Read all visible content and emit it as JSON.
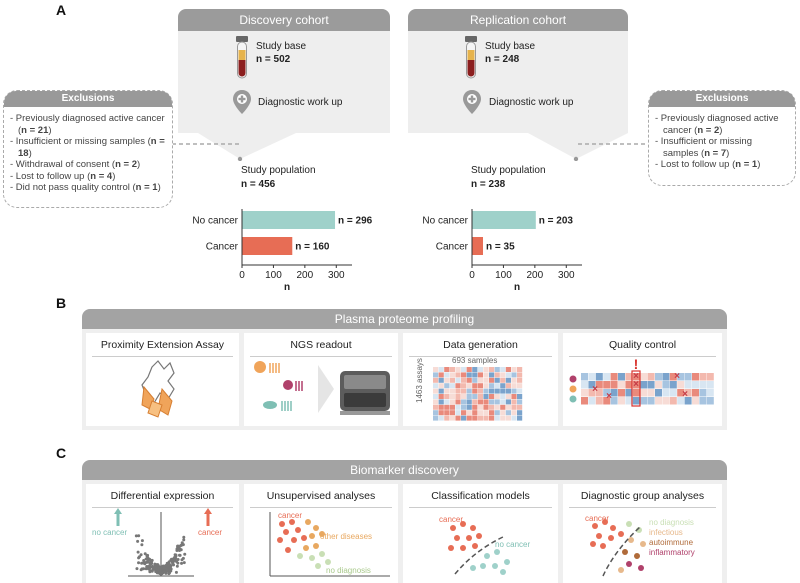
{
  "panelA": {
    "letter": "A",
    "discovery": {
      "header": "Discovery cohort",
      "study_base_label": "Study base",
      "study_base_n": "n = 502",
      "workup_label": "Diagnostic work up",
      "population_label": "Study population",
      "population_n": "n = 456",
      "chart_data": {
        "type": "bar",
        "orientation": "horizontal",
        "categories": [
          "No cancer",
          "Cancer"
        ],
        "values": [
          296,
          160
        ],
        "value_labels": [
          "n = 296",
          "n = 160"
        ],
        "colors": [
          "#9fd1ca",
          "#e76d55"
        ],
        "xlabel": "n",
        "xticks": [
          "0",
          "100",
          "200",
          "300"
        ],
        "xlim": [
          0,
          350
        ]
      }
    },
    "replication": {
      "header": "Replication cohort",
      "study_base_label": "Study base",
      "study_base_n": "n = 248",
      "workup_label": "Diagnostic work up",
      "population_label": "Study population",
      "population_n": "n = 238",
      "chart_data": {
        "type": "bar",
        "orientation": "horizontal",
        "categories": [
          "No cancer",
          "Cancer"
        ],
        "values": [
          203,
          35
        ],
        "value_labels": [
          "n = 203",
          "n = 35"
        ],
        "colors": [
          "#9fd1ca",
          "#e76d55"
        ],
        "xlabel": "n",
        "xticks": [
          "0",
          "100",
          "200",
          "300"
        ],
        "xlim": [
          0,
          350
        ]
      }
    },
    "exclusions_left": {
      "title": "Exclusions",
      "items": [
        {
          "text": "Previously diagnosed active cancer (",
          "n": "n = 21",
          "tail": ")"
        },
        {
          "text": "Insufficient or missing samples (",
          "n": "n = 18",
          "tail": ")"
        },
        {
          "text": "Withdrawal of consent (",
          "n": "n = 2",
          "tail": ")"
        },
        {
          "text": "Lost to follow up (",
          "n": "n = 4",
          "tail": ")"
        },
        {
          "text": "Did not pass quality control (",
          "n": "n = 1",
          "tail": ")"
        }
      ]
    },
    "exclusions_right": {
      "title": "Exclusions",
      "items": [
        {
          "text": "Previously diagnosed active cancer (",
          "n": "n = 2",
          "tail": ")"
        },
        {
          "text": "Insufficient or missing samples (",
          "n": "n = 7",
          "tail": ")"
        },
        {
          "text": "Lost to follow up (",
          "n": "n = 1",
          "tail": ")"
        }
      ]
    }
  },
  "panelB": {
    "letter": "B",
    "title": "Plasma proteome profiling",
    "cards": [
      {
        "title": "Proximity Extension Assay"
      },
      {
        "title": "NGS readout"
      },
      {
        "title": "Data generation",
        "samples_label": "693 samples",
        "assays_label": "1463 assays"
      },
      {
        "title": "Quality control"
      }
    ]
  },
  "panelC": {
    "letter": "C",
    "title": "Biomarker discovery",
    "cards": [
      {
        "title": "Differential expression",
        "left_label": "no cancer",
        "right_label": "cancer"
      },
      {
        "title": "Unsupervised analyses",
        "labels": [
          "cancer",
          "other diseases",
          "no diagnosis"
        ]
      },
      {
        "title": "Classification models",
        "labels": [
          "cancer",
          "no cancer"
        ]
      },
      {
        "title": "Diagnostic group analyses",
        "labels": [
          "cancer",
          "no diagnosis",
          "infectious",
          "autoimmune",
          "inflammatory"
        ]
      }
    ]
  },
  "colors": {
    "no_cancer": "#9fd1ca",
    "cancer": "#e76d55",
    "header_gray": "#9b9b9b",
    "body_gray": "#eeeeee",
    "other_diseases": "#e8a860",
    "no_diagnosis": "#c9dfb5",
    "infectious": "#e7b98c",
    "autoimmune": "#b06b3a",
    "inflammatory": "#b0416b"
  }
}
